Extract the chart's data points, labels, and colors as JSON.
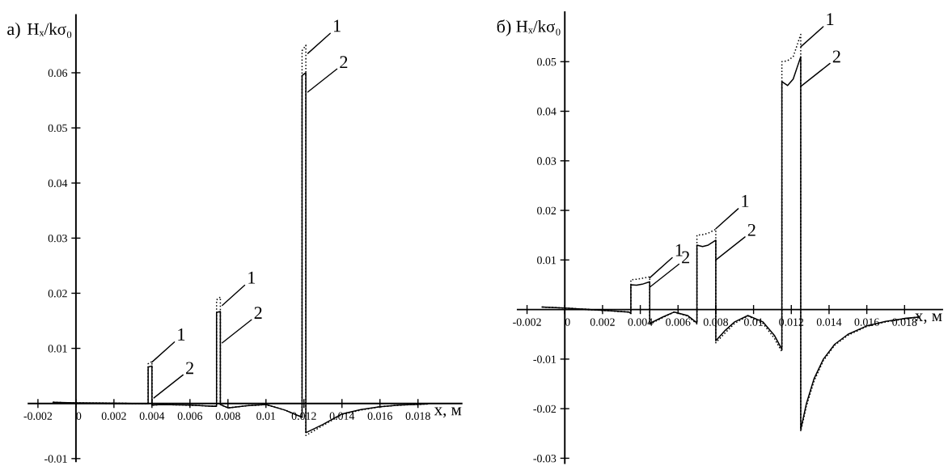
{
  "chart_data": [
    {
      "type": "line",
      "title": "а)",
      "ylabel": "Hₓ/kσ₀",
      "xlabel": "x, м",
      "xlim": [
        -0.0025,
        0.0203
      ],
      "ylim": [
        -0.0105,
        0.0705
      ],
      "xticks": [
        -0.002,
        0,
        0.002,
        0.004,
        0.006,
        0.008,
        0.01,
        0.012,
        0.014,
        0.016,
        0.018
      ],
      "yticks": [
        -0.01,
        0.01,
        0.02,
        0.03,
        0.04,
        0.05,
        0.06
      ],
      "x": [
        -0.0012,
        0.0,
        0.003,
        0.0038,
        0.0038,
        0.004,
        0.004,
        0.0045,
        0.006,
        0.0072,
        0.0074,
        0.0074,
        0.0076,
        0.0076,
        0.008,
        0.009,
        0.01,
        0.011,
        0.0119,
        0.0119,
        0.0121,
        0.0121,
        0.013,
        0.014,
        0.015,
        0.016,
        0.017,
        0.0185
      ],
      "series": [
        {
          "color": "#000000",
          "line_style": "dotted",
          "values": [
            0.0002,
            0.0001,
            0,
            0,
            0.0072,
            0.0076,
            -0.0003,
            -0.0002,
            -0.0003,
            -0.0005,
            -0.0005,
            0.0188,
            0.0193,
            -0.0002,
            -0.0008,
            -0.0004,
            -0.0002,
            -0.0012,
            -0.0025,
            0.064,
            0.065,
            -0.0058,
            -0.004,
            -0.002,
            -0.0012,
            -0.0006,
            -0.0003,
            -0.0001
          ]
        },
        {
          "color": "#000000",
          "line_style": "solid",
          "values": [
            0.0002,
            0.0001,
            0,
            0,
            0.0066,
            0.0068,
            -0.0003,
            -0.0002,
            -0.0003,
            -0.0005,
            -0.0005,
            0.0165,
            0.0167,
            -0.0002,
            -0.0008,
            -0.0004,
            -0.0002,
            -0.0012,
            -0.0025,
            0.0595,
            0.06,
            -0.0053,
            -0.0038,
            -0.0019,
            -0.0011,
            -0.0006,
            -0.0003,
            -0.0001
          ]
        }
      ],
      "annotations": [
        {
          "text": "1",
          "x": 0.004,
          "y": 0.0075
        },
        {
          "text": "2",
          "x": 0.0041,
          "y": 0.001
        },
        {
          "text": "1",
          "x": 0.0077,
          "y": 0.0178
        },
        {
          "text": "2",
          "x": 0.0077,
          "y": 0.011
        },
        {
          "text": "1",
          "x": 0.0122,
          "y": 0.0635
        },
        {
          "text": "2",
          "x": 0.0122,
          "y": 0.0565
        }
      ]
    },
    {
      "type": "line",
      "title": "б)",
      "ylabel": "Hₓ/kσ₀",
      "xlabel": "x, м",
      "xlim": [
        -0.0025,
        0.02
      ],
      "ylim": [
        -0.031,
        0.06
      ],
      "xticks": [
        -0.002,
        0,
        0.002,
        0.004,
        0.006,
        0.008,
        0.01,
        0.012,
        0.014,
        0.016,
        0.018
      ],
      "yticks": [
        -0.03,
        -0.02,
        -0.01,
        0.01,
        0.02,
        0.03,
        0.04,
        0.05
      ],
      "x": [
        -0.0012,
        0.0,
        0.0034,
        0.0035,
        0.0035,
        0.0038,
        0.0041,
        0.0045,
        0.0045,
        0.0052,
        0.0058,
        0.0065,
        0.007,
        0.007,
        0.0073,
        0.0076,
        0.008,
        0.008,
        0.0085,
        0.009,
        0.0097,
        0.0105,
        0.0111,
        0.0115,
        0.0115,
        0.0118,
        0.0121,
        0.0125,
        0.0125,
        0.0128,
        0.0132,
        0.0137,
        0.0143,
        0.015,
        0.016,
        0.017,
        0.018,
        0.0188
      ],
      "series": [
        {
          "color": "#000000",
          "line_style": "dotted",
          "values": [
            0.0005,
            0.0003,
            -0.0005,
            -0.0008,
            0.006,
            0.0061,
            0.0063,
            0.0066,
            -0.003,
            -0.0016,
            -0.0005,
            -0.0013,
            -0.0029,
            0.015,
            0.0151,
            0.0154,
            0.0162,
            -0.0067,
            -0.0047,
            -0.0028,
            -0.0013,
            -0.0028,
            -0.0058,
            -0.0085,
            0.05,
            0.0502,
            0.051,
            0.0555,
            -0.0246,
            -0.0195,
            -0.0145,
            -0.0103,
            -0.0072,
            -0.0052,
            -0.0034,
            -0.0025,
            -0.0019,
            -0.0015
          ]
        },
        {
          "color": "#000000",
          "line_style": "solid",
          "values": [
            0.0005,
            0.0003,
            -0.0005,
            -0.0008,
            0.005,
            0.0049,
            0.0051,
            0.0056,
            -0.0028,
            -0.0015,
            -0.0005,
            -0.0012,
            -0.0027,
            0.013,
            0.0127,
            0.013,
            0.014,
            -0.0063,
            -0.0042,
            -0.0025,
            -0.0012,
            -0.0025,
            -0.0052,
            -0.008,
            0.046,
            0.0452,
            0.0465,
            0.051,
            -0.0242,
            -0.019,
            -0.014,
            -0.01,
            -0.007,
            -0.005,
            -0.0033,
            -0.0024,
            -0.0018,
            -0.0015
          ]
        }
      ],
      "annotations": [
        {
          "text": "1",
          "x": 0.0045,
          "y": 0.0064
        },
        {
          "text": "2",
          "x": 0.0045,
          "y": 0.0045
        },
        {
          "text": "1",
          "x": 0.008,
          "y": 0.0163
        },
        {
          "text": "2",
          "x": 0.008,
          "y": 0.01
        },
        {
          "text": "1",
          "x": 0.0125,
          "y": 0.053
        },
        {
          "text": "2",
          "x": 0.0125,
          "y": 0.045
        }
      ]
    }
  ]
}
